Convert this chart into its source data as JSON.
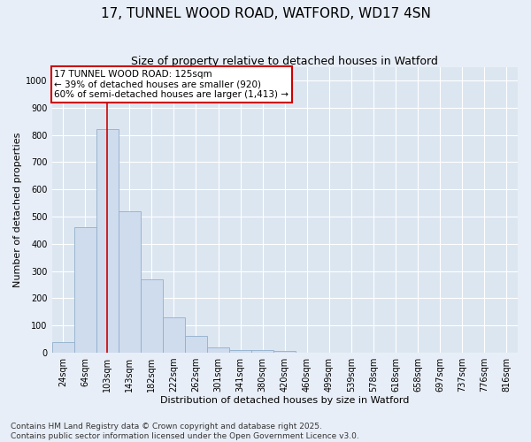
{
  "title": "17, TUNNEL WOOD ROAD, WATFORD, WD17 4SN",
  "subtitle": "Size of property relative to detached houses in Watford",
  "xlabel": "Distribution of detached houses by size in Watford",
  "ylabel": "Number of detached properties",
  "categories": [
    "24sqm",
    "64sqm",
    "103sqm",
    "143sqm",
    "182sqm",
    "222sqm",
    "262sqm",
    "301sqm",
    "341sqm",
    "380sqm",
    "420sqm",
    "460sqm",
    "499sqm",
    "539sqm",
    "578sqm",
    "618sqm",
    "658sqm",
    "697sqm",
    "737sqm",
    "776sqm",
    "816sqm"
  ],
  "values": [
    40,
    460,
    820,
    520,
    270,
    130,
    60,
    20,
    10,
    10,
    5,
    0,
    0,
    0,
    0,
    0,
    0,
    0,
    0,
    0,
    0
  ],
  "bar_color": "#cfdcee",
  "bar_edge_color": "#90aecb",
  "vline_x": 2,
  "vline_color": "#cc0000",
  "annotation_text": "17 TUNNEL WOOD ROAD: 125sqm\n← 39% of detached houses are smaller (920)\n60% of semi-detached houses are larger (1,413) →",
  "annotation_box_color": "#ffffff",
  "annotation_box_edge": "#cc0000",
  "ylim": [
    0,
    1050
  ],
  "yticks": [
    0,
    100,
    200,
    300,
    400,
    500,
    600,
    700,
    800,
    900,
    1000
  ],
  "footer1": "Contains HM Land Registry data © Crown copyright and database right 2025.",
  "footer2": "Contains public sector information licensed under the Open Government Licence v3.0.",
  "bg_color": "#e8eef7",
  "plot_bg_color": "#dce6f1",
  "grid_color": "#ffffff",
  "title_fontsize": 11,
  "subtitle_fontsize": 9,
  "tick_fontsize": 7,
  "label_fontsize": 8,
  "footer_fontsize": 6.5,
  "annotation_fontsize": 7.5
}
